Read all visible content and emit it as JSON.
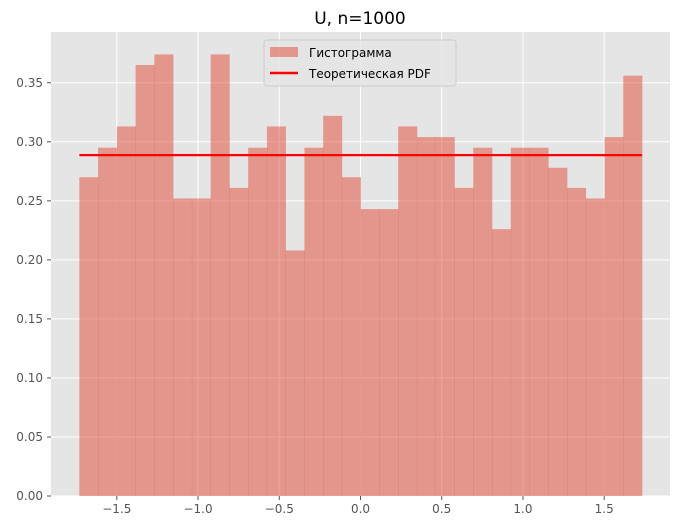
{
  "chart_data": {
    "type": "bar",
    "title": "U, n=1000",
    "xlabel": "",
    "ylabel": "",
    "xlim": [
      -1.905,
      1.905
    ],
    "ylim": [
      0.0,
      0.393
    ],
    "x_ticks": [
      -1.5,
      -1.0,
      -0.5,
      0.0,
      0.5,
      1.0,
      1.5
    ],
    "x_tick_labels": [
      "−1.5",
      "−1.0",
      "−0.5",
      "0.0",
      "0.5",
      "1.0",
      "1.5"
    ],
    "y_ticks": [
      0.0,
      0.05,
      0.1,
      0.15,
      0.2,
      0.25,
      0.3,
      0.35
    ],
    "y_tick_labels": [
      "0.00",
      "0.05",
      "0.10",
      "0.15",
      "0.20",
      "0.25",
      "0.30",
      "0.35"
    ],
    "grid": true,
    "legend_position": "top-center",
    "bin_edges": [
      -1.7305,
      -1.6151,
      -1.4996,
      -1.3842,
      -1.2687,
      -1.1533,
      -1.0378,
      -0.9224,
      -0.8069,
      -0.6915,
      -0.576,
      -0.4606,
      -0.3451,
      -0.2297,
      -0.1142,
      0.0012,
      0.1167,
      0.2321,
      0.3476,
      0.463,
      0.5785,
      0.6939,
      0.8094,
      0.9248,
      1.0403,
      1.1557,
      1.2712,
      1.3866,
      1.5021,
      1.6175,
      1.733
    ],
    "series": [
      {
        "name": "Гистограмма",
        "kind": "histogram",
        "color": "#E24A33",
        "alpha": 0.5,
        "values": [
          0.27,
          0.295,
          0.313,
          0.365,
          0.374,
          0.252,
          0.252,
          0.374,
          0.261,
          0.295,
          0.313,
          0.208,
          0.295,
          0.322,
          0.27,
          0.243,
          0.243,
          0.313,
          0.304,
          0.304,
          0.261,
          0.295,
          0.226,
          0.295,
          0.295,
          0.278,
          0.261,
          0.252,
          0.304,
          0.356
        ]
      },
      {
        "name": "Теоретическая PDF",
        "kind": "line",
        "color": "#FF0000",
        "x": [
          -1.7305,
          1.733
        ],
        "values": [
          0.2887,
          0.2887
        ]
      }
    ]
  }
}
